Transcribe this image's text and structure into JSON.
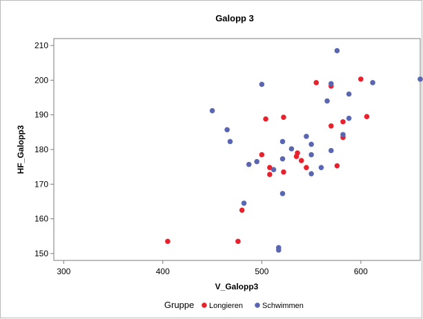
{
  "chart_data": {
    "type": "scatter",
    "title": "Galopp 3",
    "xlabel": "V_Galopp3",
    "ylabel": "HF_Galopp3",
    "xlim": [
      290,
      660
    ],
    "ylim": [
      148,
      212
    ],
    "xticks": [
      300,
      400,
      500,
      600
    ],
    "yticks": [
      150,
      160,
      170,
      180,
      190,
      200,
      210
    ],
    "legend": {
      "title": "Gruppe",
      "placement": "bottom"
    },
    "series": [
      {
        "name": "Longieren",
        "color": "#e8222d",
        "points": [
          [
            405,
            153.5
          ],
          [
            476,
            153.5
          ],
          [
            480,
            162.5
          ],
          [
            500,
            178.5
          ],
          [
            504,
            188.8
          ],
          [
            508,
            172.8
          ],
          [
            508,
            174.8
          ],
          [
            522,
            173.5
          ],
          [
            522,
            189.3
          ],
          [
            535,
            178.0
          ],
          [
            536,
            179.0
          ],
          [
            540,
            176.8
          ],
          [
            545,
            174.8
          ],
          [
            555,
            199.3
          ],
          [
            570,
            186.8
          ],
          [
            570,
            198.3
          ],
          [
            576,
            175.3
          ],
          [
            582,
            183.5
          ],
          [
            582,
            188.0
          ],
          [
            600,
            200.3
          ],
          [
            606,
            189.5
          ]
        ]
      },
      {
        "name": "Schwimmen",
        "color": "#5a67b0",
        "points": [
          [
            450,
            191.2
          ],
          [
            465,
            185.7
          ],
          [
            468,
            182.3
          ],
          [
            482,
            164.5
          ],
          [
            487,
            175.7
          ],
          [
            495,
            176.5
          ],
          [
            500,
            198.8
          ],
          [
            512,
            174.2
          ],
          [
            517,
            151.0
          ],
          [
            517,
            151.7
          ],
          [
            521,
            167.3
          ],
          [
            521,
            177.3
          ],
          [
            521,
            182.3
          ],
          [
            530,
            180.2
          ],
          [
            545,
            183.8
          ],
          [
            550,
            173.0
          ],
          [
            550,
            178.5
          ],
          [
            550,
            181.5
          ],
          [
            560,
            174.8
          ],
          [
            566,
            194.0
          ],
          [
            570,
            179.7
          ],
          [
            570,
            199.0
          ],
          [
            576,
            208.5
          ],
          [
            582,
            184.3
          ],
          [
            588,
            196.0
          ],
          [
            588,
            189.0
          ],
          [
            612,
            199.3
          ],
          [
            660,
            200.3
          ]
        ]
      }
    ]
  }
}
